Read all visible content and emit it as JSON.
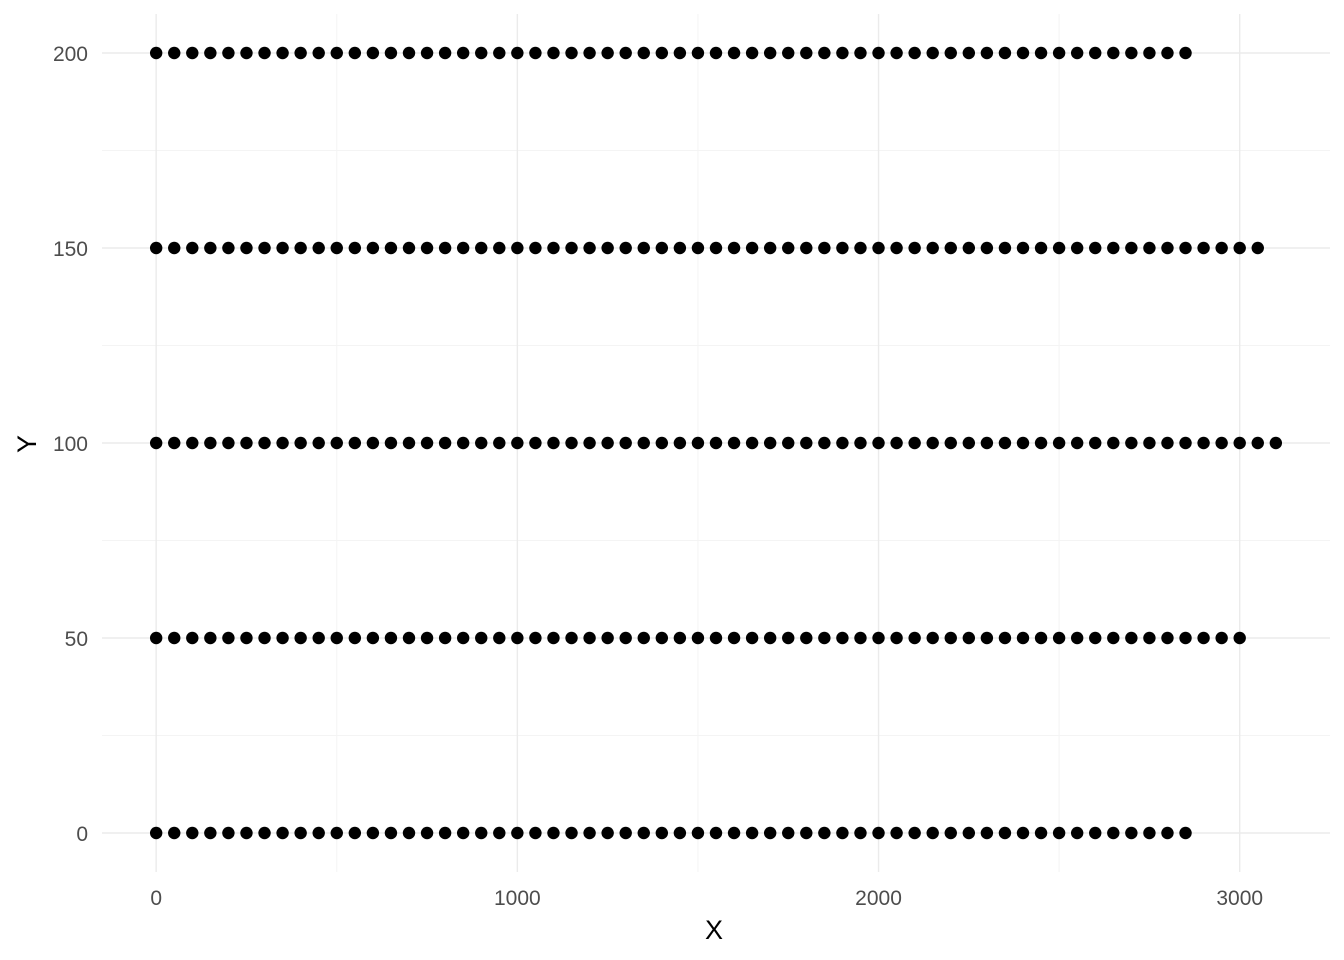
{
  "chart_data": {
    "type": "scatter",
    "title": "",
    "xlabel": "X",
    "ylabel": "Y",
    "xlim": [
      -150,
      3250
    ],
    "ylim": [
      -10,
      210
    ],
    "xticks": [
      0,
      1000,
      2000,
      3000
    ],
    "yticks": [
      0,
      50,
      100,
      150,
      200
    ],
    "grid": true,
    "legend": "none",
    "point_color": "#000000",
    "series": [
      {
        "y": 0,
        "x_start": 0,
        "x_step": 50,
        "count": 58
      },
      {
        "y": 50,
        "x_start": 0,
        "x_step": 50,
        "count": 61
      },
      {
        "y": 100,
        "x_start": 0,
        "x_step": 50,
        "count": 63
      },
      {
        "y": 150,
        "x_start": 0,
        "x_step": 50,
        "count": 62
      },
      {
        "y": 200,
        "x_start": 0,
        "x_step": 50,
        "count": 58
      }
    ]
  }
}
